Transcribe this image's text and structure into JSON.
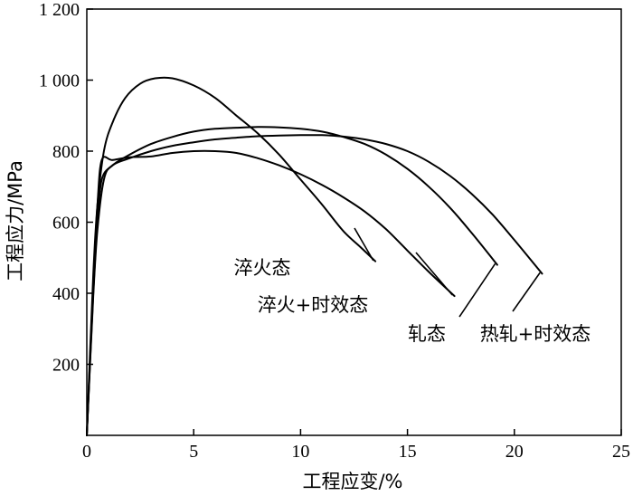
{
  "chart_data": {
    "type": "line",
    "xlabel": "工程应变/%",
    "ylabel": "工程应力/MPa",
    "xlim": [
      0,
      25
    ],
    "ylim": [
      0,
      1200
    ],
    "xticks": [
      0,
      5,
      10,
      15,
      20,
      25
    ],
    "yticks": [
      200,
      400,
      600,
      800,
      1000,
      1200
    ],
    "xtick_labels": [
      "0",
      "5",
      "10",
      "15",
      "20",
      "25"
    ],
    "ytick_labels": [
      "200",
      "400",
      "600",
      "800",
      "1 000",
      "1 200"
    ],
    "grid": false,
    "series": [
      {
        "name": "淬火态",
        "x": [
          0,
          0.3,
          0.5,
          0.8,
          1.2,
          1.8,
          2.5,
          3.2,
          4,
          5,
          6,
          7,
          8,
          9,
          10,
          11,
          12,
          12.8,
          13.5
        ],
        "y": [
          0,
          450,
          650,
          800,
          880,
          950,
          990,
          1005,
          1005,
          985,
          950,
          900,
          850,
          790,
          720,
          650,
          575,
          530,
          490
        ]
      },
      {
        "name": "淬火+时效态",
        "x": [
          0,
          0.3,
          0.5,
          0.7,
          1.2,
          2,
          3,
          4,
          5,
          6,
          7,
          8,
          9,
          10,
          11,
          12,
          13,
          14,
          15,
          16,
          17.2
        ],
        "y": [
          0,
          420,
          650,
          775,
          775,
          783,
          785,
          795,
          800,
          800,
          795,
          780,
          760,
          735,
          705,
          670,
          630,
          580,
          520,
          460,
          392
        ]
      },
      {
        "name": "轧态",
        "x": [
          0,
          0.3,
          0.5,
          0.7,
          1.2,
          2,
          3,
          4,
          5,
          6,
          7,
          8,
          9,
          10,
          11,
          12,
          13,
          14,
          15,
          16,
          17,
          18,
          19.2
        ],
        "y": [
          0,
          400,
          600,
          720,
          760,
          790,
          820,
          840,
          855,
          863,
          866,
          868,
          867,
          863,
          855,
          840,
          820,
          790,
          750,
          700,
          640,
          570,
          480
        ]
      },
      {
        "name": "热轧+时效态",
        "x": [
          0,
          0.3,
          0.5,
          0.8,
          1.2,
          2,
          3,
          4,
          5,
          6,
          7,
          8,
          9,
          10,
          11,
          12,
          13,
          14,
          15,
          16,
          17,
          18,
          19,
          20,
          21.3
        ],
        "y": [
          0,
          390,
          580,
          720,
          760,
          780,
          800,
          815,
          825,
          833,
          838,
          842,
          844,
          845,
          845,
          841,
          833,
          820,
          800,
          770,
          730,
          680,
          620,
          550,
          455
        ]
      }
    ],
    "annotations": [
      {
        "text": "淬火态",
        "series": "淬火态"
      },
      {
        "text": "淬火+时效态",
        "series": "淬火+时效态"
      },
      {
        "text": "轧态",
        "series": "轧态"
      },
      {
        "text": "热轧+时效态",
        "series": "热轧+时效态"
      }
    ]
  }
}
